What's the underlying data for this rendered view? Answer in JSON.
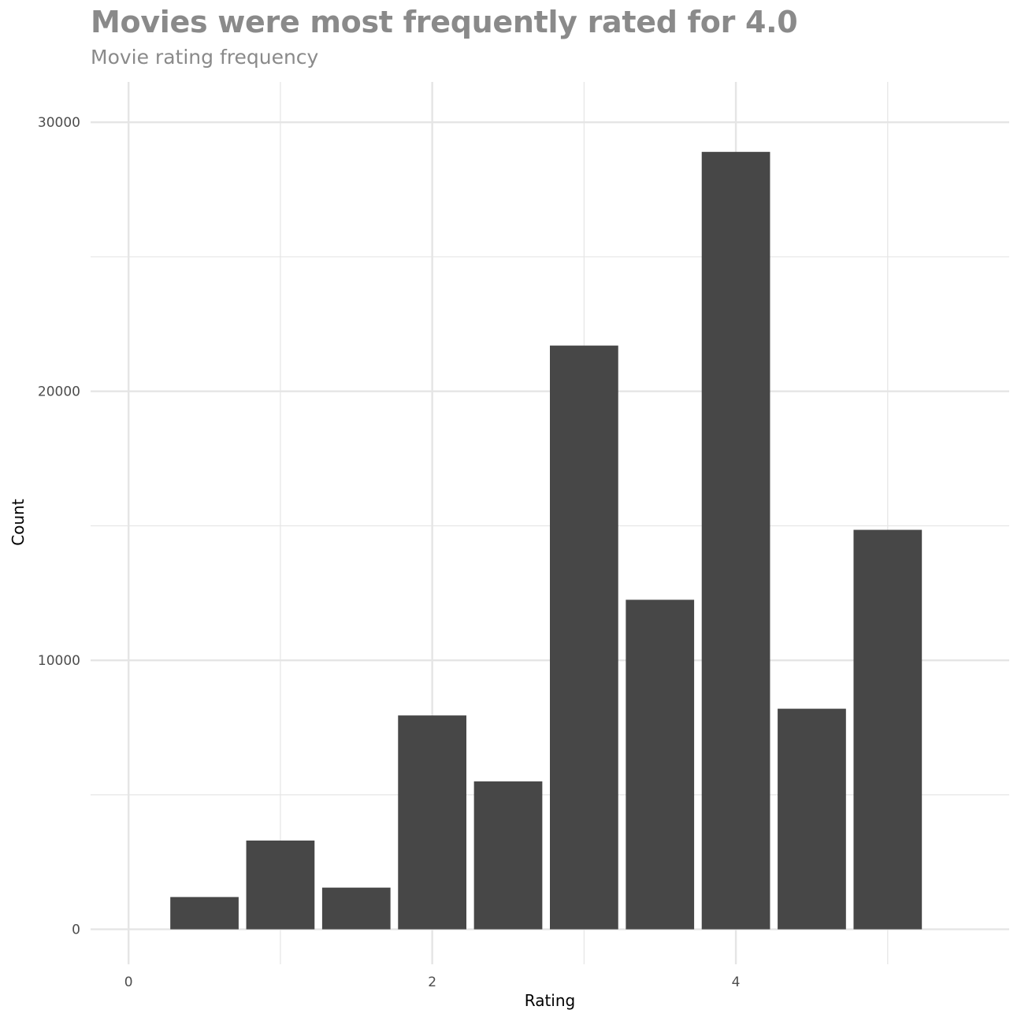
{
  "chart_data": {
    "type": "bar",
    "title": "Movies were most frequently rated for 4.0",
    "subtitle": "Movie rating frequency",
    "xlabel": "Rating",
    "ylabel": "Count",
    "x": [
      0.5,
      1.0,
      1.5,
      2.0,
      2.5,
      3.0,
      3.5,
      4.0,
      4.5,
      5.0
    ],
    "values": [
      1200,
      3300,
      1550,
      7950,
      5500,
      21700,
      12250,
      28900,
      8200,
      14850
    ],
    "bar_width": 0.45,
    "xlim": [
      -0.25,
      5.8
    ],
    "ylim": [
      -1300,
      31500
    ],
    "x_ticks": [
      0,
      2,
      4
    ],
    "x_minor_ticks": [
      1,
      3,
      5
    ],
    "y_ticks": [
      0,
      10000,
      20000,
      30000
    ],
    "y_minor_ticks": [
      5000,
      15000,
      25000
    ],
    "bar_color": "#474747",
    "grid_color": "#e5e5e5",
    "grid": true
  }
}
